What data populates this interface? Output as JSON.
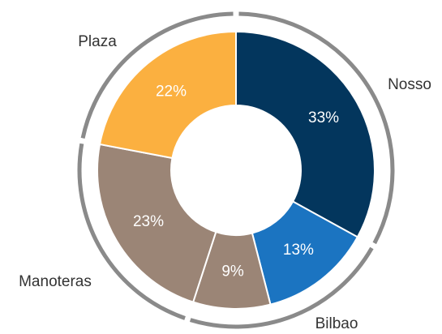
{
  "chart_data": {
    "type": "donut",
    "categories": [
      "Nosso",
      "Bilbao",
      null,
      "Manoteras",
      "Plaza"
    ],
    "values": [
      33,
      13,
      9,
      23,
      22
    ],
    "value_labels": [
      "33%",
      "13%",
      "9%",
      "23%",
      "22%"
    ],
    "colors": [
      "#03365d",
      "#1b74c1",
      "#9b8576",
      "#9b8576",
      "#fbb040"
    ]
  }
}
